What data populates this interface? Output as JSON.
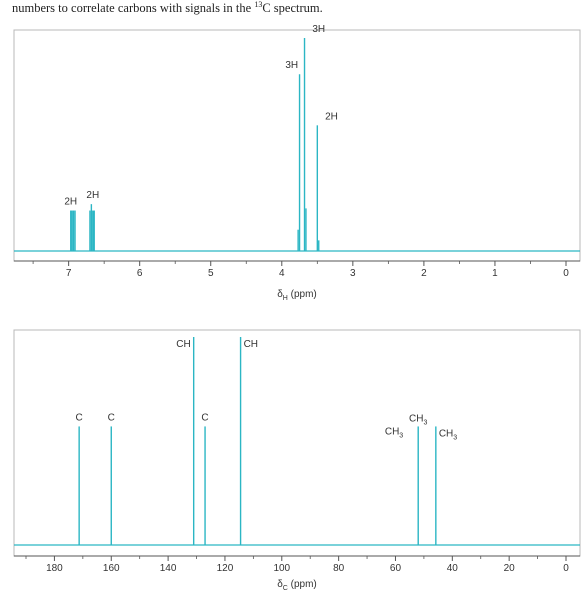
{
  "caption": {
    "text": "numbers to correlate carbons with signals in the ",
    "sup": "13",
    "text_end": "C spectrum."
  },
  "colors": {
    "peak": "#2bb6c4",
    "frame": "#b8b8b8",
    "axis": "#555555"
  },
  "chart_data": [
    {
      "type": "spectrum",
      "id": "h1",
      "xlabel_prefix": "δ",
      "xlabel_sub": "H",
      "xlabel_suffix": " (ppm)",
      "xlim": [
        7.6,
        0
      ],
      "ticks": [
        7,
        6,
        5,
        4,
        3,
        2,
        1,
        0
      ],
      "minor_ticks": [
        7.5,
        6.5,
        5.5,
        4.5,
        3.5,
        2.5,
        1.5,
        0.5
      ],
      "ylim": [
        0,
        1
      ],
      "peaks": [
        {
          "x": 6.97,
          "h": 0.19
        },
        {
          "x": 6.95,
          "h": 0.19
        },
        {
          "x": 6.93,
          "h": 0.19
        },
        {
          "x": 6.91,
          "h": 0.19
        },
        {
          "x": 6.7,
          "h": 0.19
        },
        {
          "x": 6.68,
          "h": 0.22
        },
        {
          "x": 6.66,
          "h": 0.19
        },
        {
          "x": 6.64,
          "h": 0.19
        },
        {
          "x": 3.77,
          "h": 0.1
        },
        {
          "x": 3.75,
          "h": 0.83
        },
        {
          "x": 3.68,
          "h": 1.0
        },
        {
          "x": 3.66,
          "h": 0.2
        },
        {
          "x": 3.5,
          "h": 0.59
        },
        {
          "x": 3.48,
          "h": 0.05
        }
      ],
      "labels": [
        {
          "text": "2H",
          "x": 6.97,
          "h": 0.19
        },
        {
          "text": "2H",
          "x": 6.66,
          "h": 0.22
        },
        {
          "text": "3H",
          "x": 3.86,
          "h": 0.83
        },
        {
          "text": "3H",
          "x": 3.48,
          "h": 1.0
        },
        {
          "text": "2H",
          "x": 3.3,
          "h": 0.59
        }
      ]
    },
    {
      "type": "spectrum",
      "id": "c13",
      "xlabel_prefix": "δ",
      "xlabel_sub": "C",
      "xlabel_suffix": " (ppm)",
      "xlim": [
        190,
        0
      ],
      "ticks": [
        180,
        160,
        140,
        120,
        100,
        80,
        60,
        40,
        20,
        0
      ],
      "minor_ticks": [
        190,
        170,
        150,
        130,
        110,
        90,
        70,
        50,
        30,
        10
      ],
      "ylim": [
        0,
        1
      ],
      "peaks": [
        {
          "x": 171.3,
          "h": 0.57
        },
        {
          "x": 160.0,
          "h": 0.57
        },
        {
          "x": 131.0,
          "h": 1.0
        },
        {
          "x": 127.0,
          "h": 0.57
        },
        {
          "x": 114.5,
          "h": 1.0
        },
        {
          "x": 52.0,
          "h": 0.57
        },
        {
          "x": 45.8,
          "h": 0.57
        }
      ],
      "labels": [
        {
          "text": "C",
          "sub": "",
          "x": 171.3,
          "h": 0.57,
          "side": "top"
        },
        {
          "text": "C",
          "sub": "",
          "x": 160.0,
          "h": 0.57,
          "side": "top"
        },
        {
          "text": "CH",
          "sub": "",
          "x": 131.0,
          "h": 1.0,
          "side": "left"
        },
        {
          "text": "C",
          "sub": "",
          "x": 127.0,
          "h": 0.57,
          "side": "top"
        },
        {
          "text": "CH",
          "sub": "",
          "x": 114.5,
          "h": 1.0,
          "side": "right"
        },
        {
          "text": "CH",
          "sub": "3",
          "x": 52.0,
          "h": 0.57,
          "side": "top"
        },
        {
          "text": "CH",
          "sub": "3",
          "x": 52.0,
          "h": 0.57,
          "side": "left"
        },
        {
          "text": "CH",
          "sub": "3",
          "x": 45.8,
          "h": 0.57,
          "side": "right"
        }
      ]
    }
  ]
}
